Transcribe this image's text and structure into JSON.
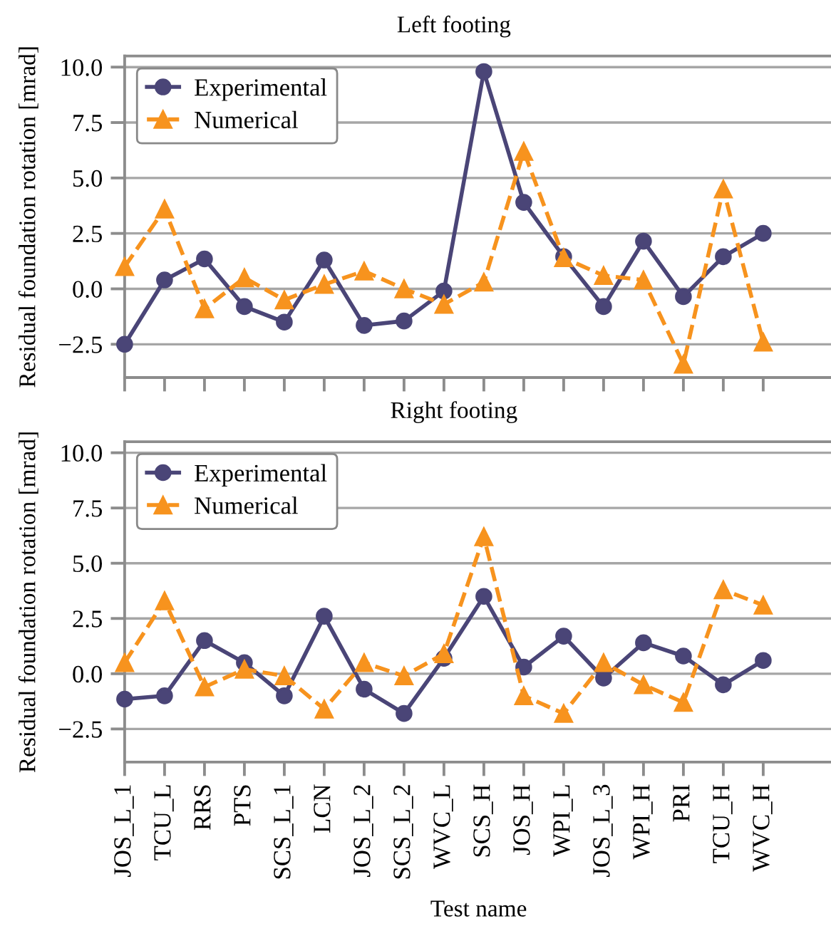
{
  "chart_data": [
    {
      "type": "line",
      "title": "Left footing",
      "ylabel": "Residual foundation rotation [mrad]",
      "categories": [
        null,
        null,
        null,
        null,
        null,
        null,
        null,
        null,
        null,
        null,
        null,
        null,
        null,
        null,
        null,
        null,
        null
      ],
      "series": [
        {
          "name": "Experimental",
          "color": "#4a4577",
          "marker": "circle",
          "line_style": "solid",
          "values": [
            -2.5,
            0.4,
            1.35,
            -0.8,
            -1.5,
            1.3,
            -1.65,
            -1.45,
            -0.1,
            9.8,
            3.9,
            1.45,
            -0.8,
            2.15,
            -0.35,
            1.45,
            2.5
          ]
        },
        {
          "name": "Numerical",
          "color": "#f7931e",
          "marker": "triangle",
          "line_style": "dashed",
          "values": [
            1.0,
            3.6,
            -0.9,
            0.5,
            -0.5,
            0.2,
            0.8,
            0.0,
            -0.7,
            0.3,
            6.2,
            1.4,
            0.6,
            0.4,
            -3.4,
            4.5,
            -2.4
          ]
        }
      ],
      "ylim": [
        -4,
        10.5
      ],
      "yticks": [
        {
          "value": -2.5,
          "label": "−2.5"
        },
        {
          "value": 0,
          "label": "0.0"
        },
        {
          "value": 2.5,
          "label": "2.5"
        },
        {
          "value": 5,
          "label": "5.0"
        },
        {
          "value": 7.5,
          "label": "7.5"
        },
        {
          "value": 10,
          "label": "10.0"
        }
      ],
      "grid": "y",
      "legend": "top left"
    },
    {
      "type": "line",
      "title": "Right footing",
      "xlabel": "Test name",
      "ylabel": "Residual foundation rotation [mrad]",
      "categories": [
        "JOS_L_1",
        "TCU_L",
        "RRS",
        "PTS",
        "SCS_L_1",
        "LCN",
        "JOS_L_2",
        "SCS_L_2",
        "WVC_L",
        "SCS_H",
        "JOS_H",
        "WPI_L",
        "JOS_L_3",
        "WPI_H",
        "PRI",
        "TCU_H",
        "WVC_H"
      ],
      "series": [
        {
          "name": "Experimental",
          "color": "#4a4577",
          "marker": "circle",
          "line_style": "solid",
          "values": [
            -1.15,
            -1.0,
            1.5,
            0.5,
            -1.0,
            2.6,
            -0.7,
            -1.8,
            0.7,
            3.5,
            0.3,
            1.7,
            -0.2,
            1.4,
            0.8,
            -0.5,
            0.6
          ]
        },
        {
          "name": "Numerical",
          "color": "#f7931e",
          "marker": "triangle",
          "line_style": "dashed",
          "values": [
            0.5,
            3.3,
            -0.6,
            0.2,
            -0.1,
            -1.6,
            0.5,
            -0.1,
            0.9,
            6.2,
            -1.0,
            -1.8,
            0.5,
            -0.5,
            -1.3,
            3.8,
            3.1
          ]
        }
      ],
      "ylim": [
        -4,
        10.5
      ],
      "yticks": [
        {
          "value": -2.5,
          "label": "−2.5"
        },
        {
          "value": 0,
          "label": "0.0"
        },
        {
          "value": 2.5,
          "label": "2.5"
        },
        {
          "value": 5,
          "label": "5.0"
        },
        {
          "value": 7.5,
          "label": "7.5"
        },
        {
          "value": 10,
          "label": "10.0"
        }
      ],
      "grid": "y",
      "legend": "top left"
    }
  ]
}
